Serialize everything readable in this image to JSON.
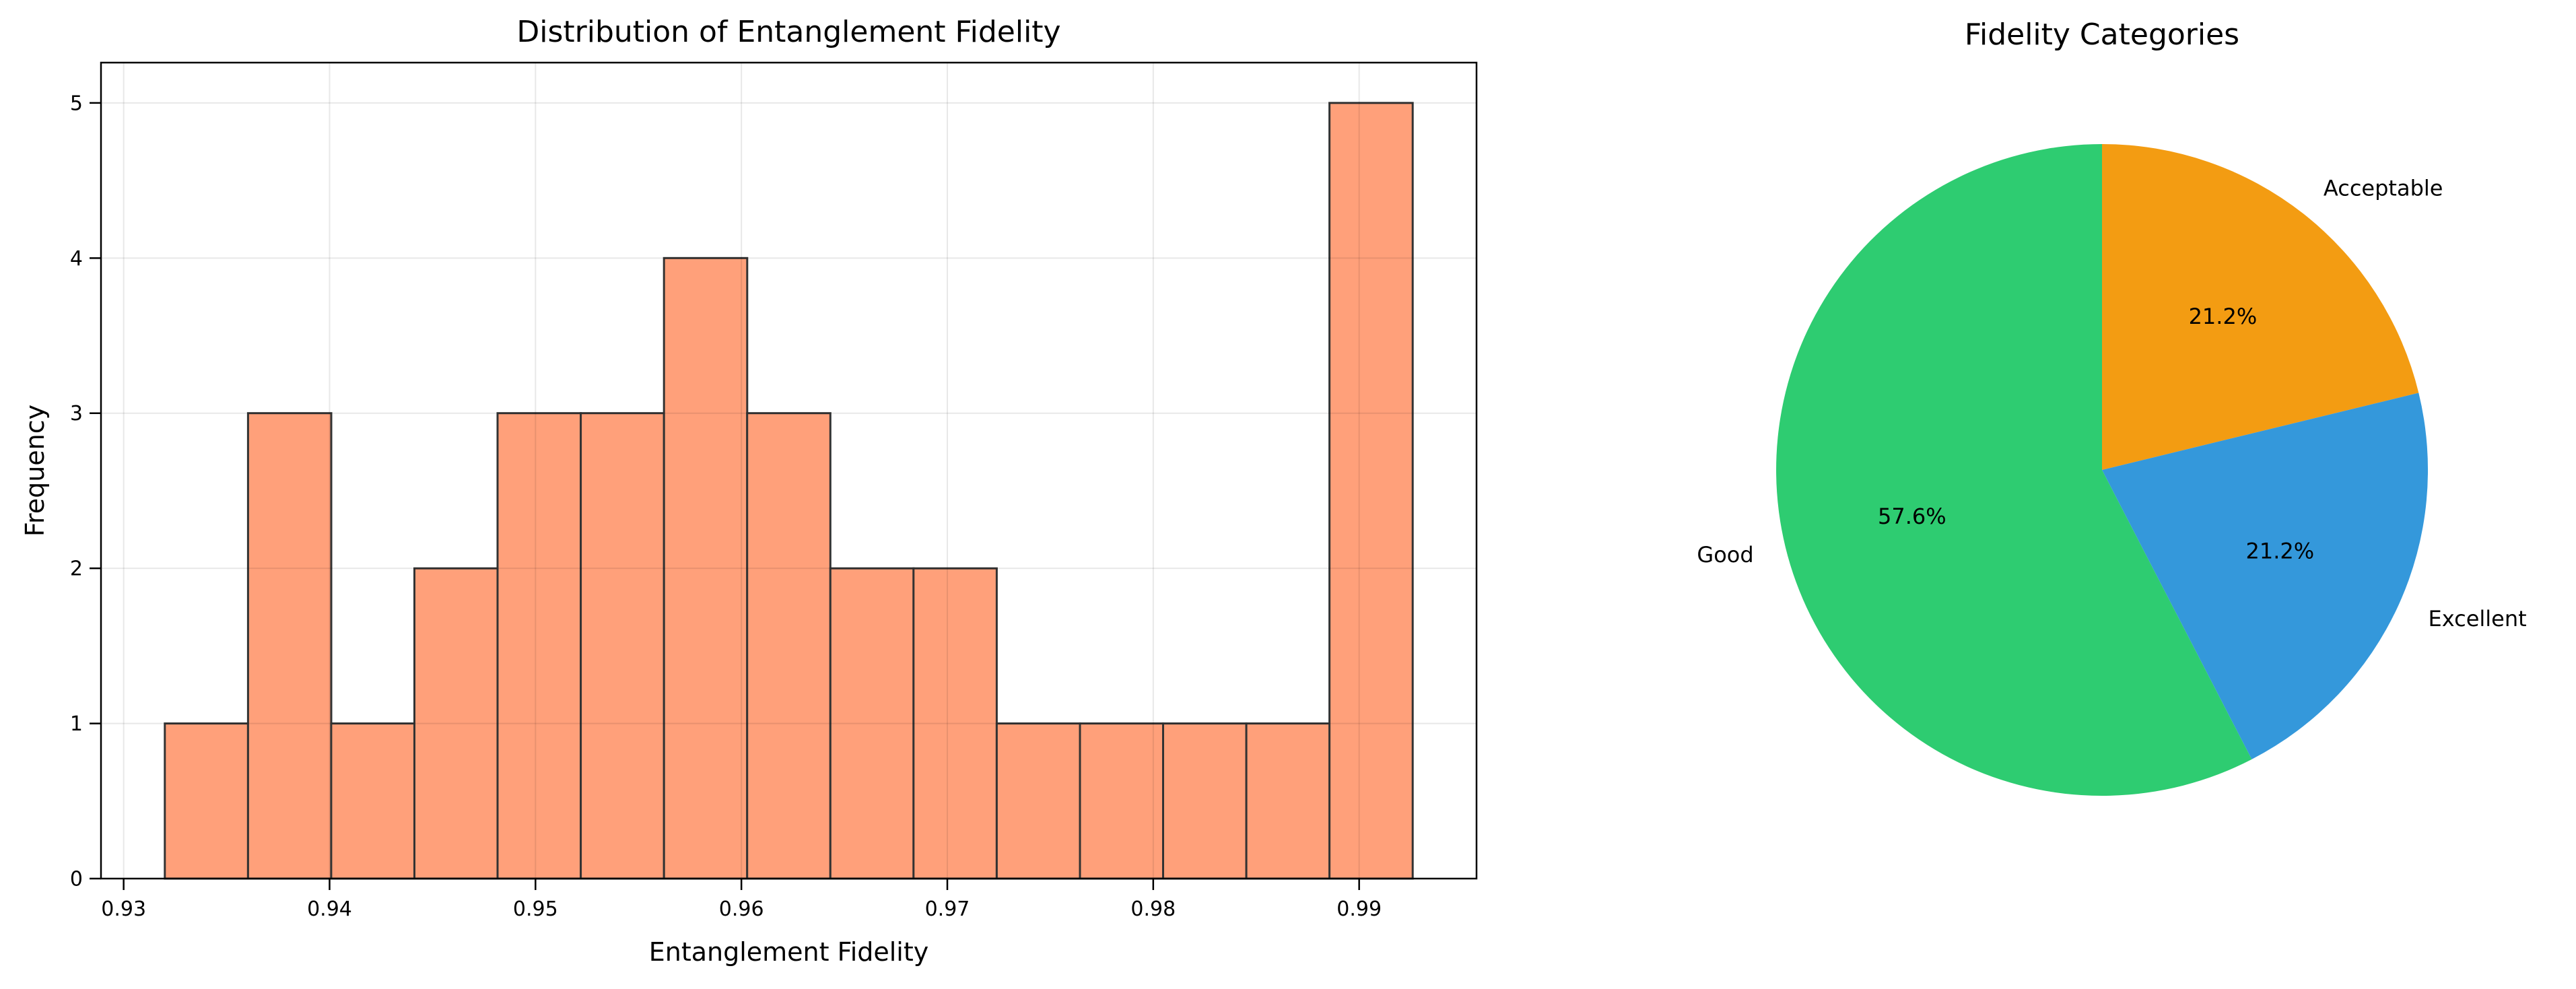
{
  "figure": {
    "background": "#ffffff"
  },
  "histogram": {
    "title": "Distribution of Entanglement Fidelity",
    "xlabel": "Entanglement Fidelity",
    "ylabel": "Frequency"
  },
  "pie": {
    "title": "Fidelity Categories"
  },
  "chart_data": [
    {
      "type": "bar",
      "subtype": "histogram",
      "title": "Distribution of Entanglement Fidelity",
      "xlabel": "Entanglement Fidelity",
      "ylabel": "Frequency",
      "bin_start": 0.932,
      "bin_width": 0.00404,
      "counts": [
        1,
        3,
        1,
        2,
        3,
        3,
        4,
        3,
        2,
        2,
        1,
        1,
        1,
        1,
        5
      ],
      "total_samples": 33,
      "xlim": [
        0.9289,
        0.9957
      ],
      "ylim": [
        0,
        5.26
      ],
      "xtick_labels": [
        "0.93",
        "0.94",
        "0.95",
        "0.96",
        "0.97",
        "0.98",
        "0.99"
      ],
      "ytick_labels": [
        "0",
        "1",
        "2",
        "3",
        "4",
        "5"
      ],
      "grid": true,
      "bar_fill_color": "#FFA07A",
      "bar_edge_color": "#333333",
      "grid_color": "rgba(0,0,0,0.09)",
      "spine_color": "#000000",
      "legend": "none"
    },
    {
      "type": "pie",
      "title": "Fidelity Categories",
      "labels": [
        "Acceptable",
        "Excellent",
        "Good"
      ],
      "values": [
        21.2,
        21.2,
        57.6
      ],
      "pct_labels": [
        "21.2%",
        "21.2%",
        "57.6%"
      ],
      "colors": [
        "#f39c12",
        "#3498db",
        "#2ecc71"
      ],
      "start_angle_deg": 90,
      "clockwise": true,
      "label_distance": 1.1,
      "pct_distance": 0.6,
      "text_color": "#000000",
      "legend": "none"
    }
  ]
}
